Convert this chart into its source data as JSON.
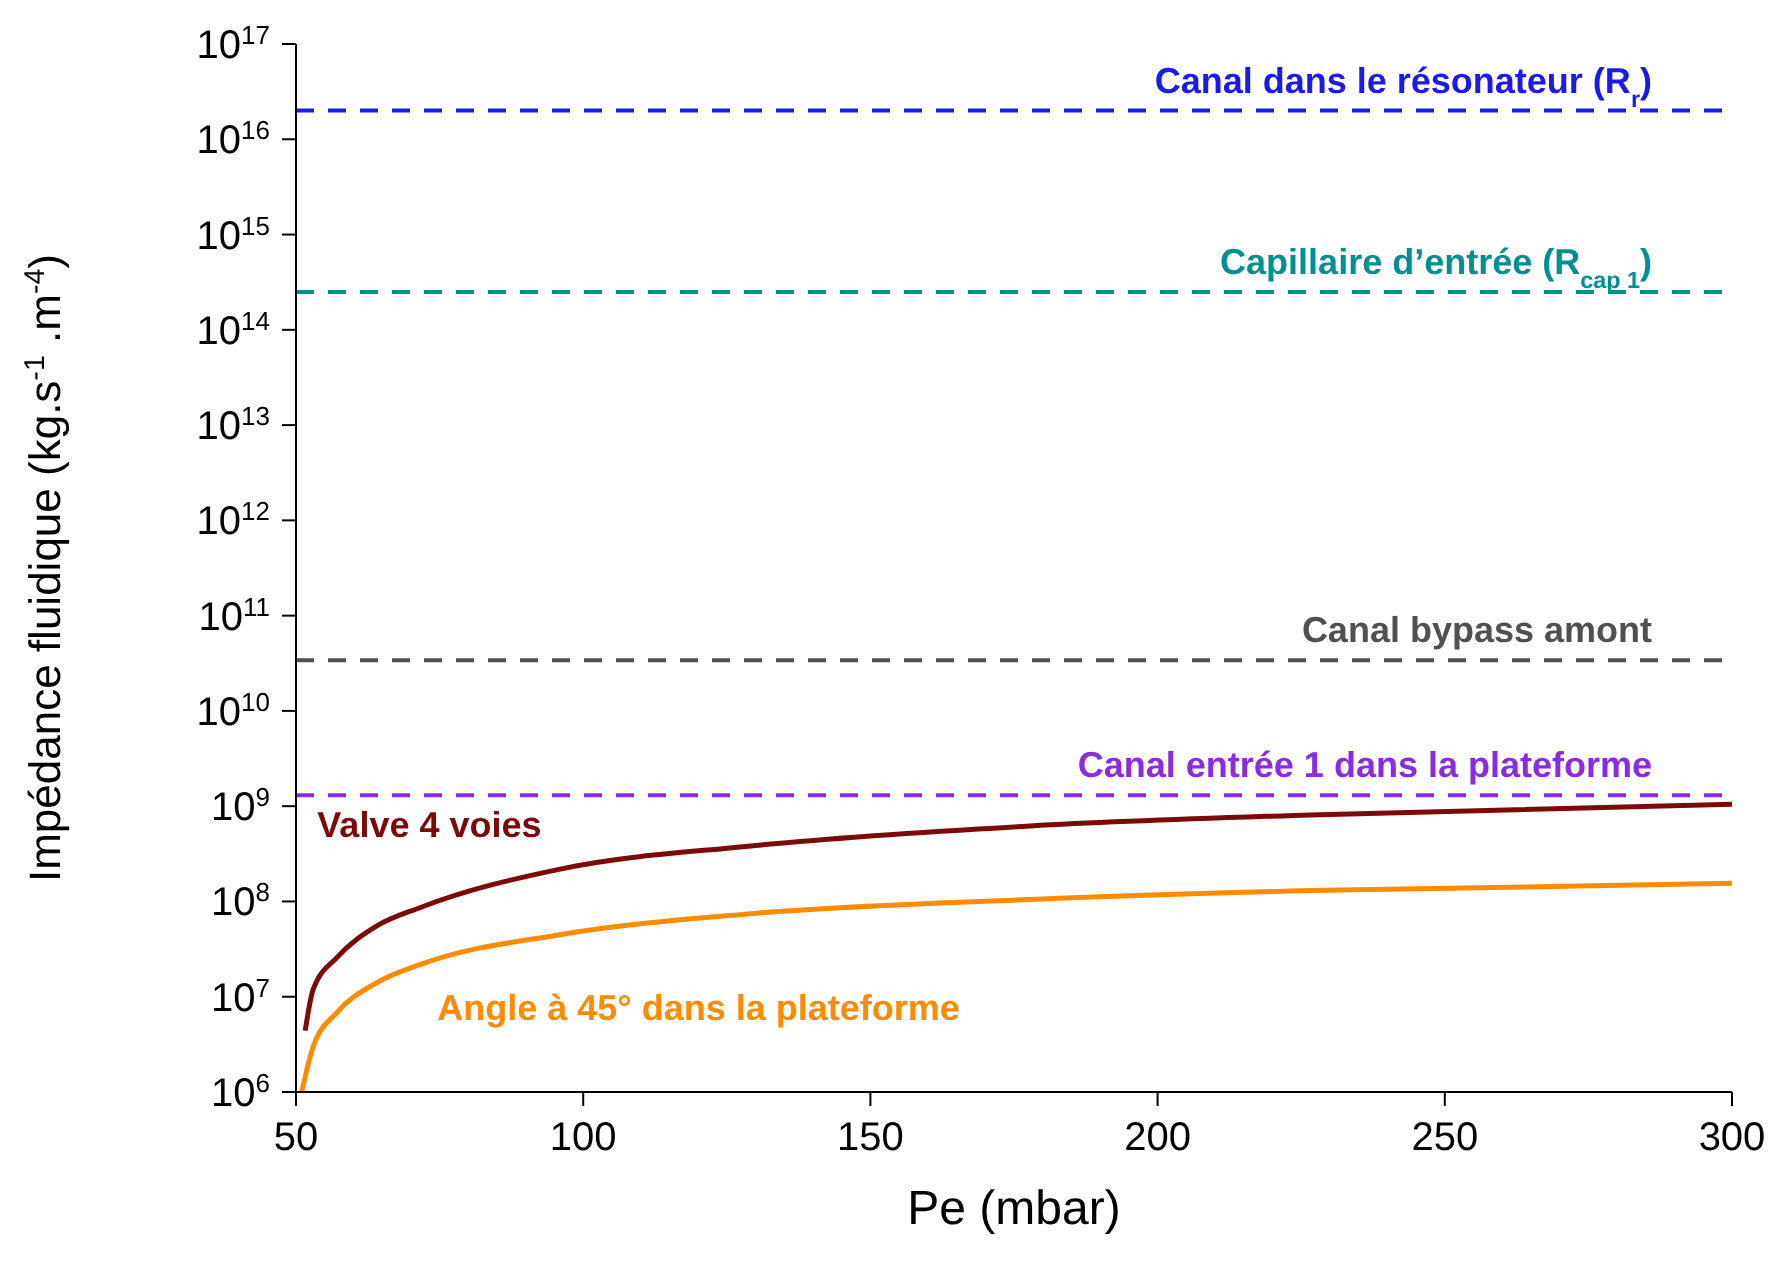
{
  "chart_data": {
    "type": "line",
    "xlabel": "Pe (mbar)",
    "ylabel": "Impédance fluidique (kg.s$^{-1}$ .m$^{-4}$)",
    "log": "y",
    "xlim": [
      50,
      300
    ],
    "xticks": [
      50,
      100,
      150,
      200,
      250,
      300
    ],
    "ylim": [
      1000000,
      100000000000000000
    ],
    "yticks": [
      {
        "value": 1000000,
        "label": "10$^{6}$"
      },
      {
        "value": 10000000,
        "label": "10$^{7}$"
      },
      {
        "value": 100000000,
        "label": "10$^{8}$"
      },
      {
        "value": 1000000000,
        "label": "10$^{9}$"
      },
      {
        "value": 10000000000,
        "label": "10$^{10}$"
      },
      {
        "value": 100000000000,
        "label": "10$^{11}$"
      },
      {
        "value": 1000000000000,
        "label": "10$^{12}$"
      },
      {
        "value": 10000000000000,
        "label": "10$^{13}$"
      },
      {
        "value": 100000000000000,
        "label": "10$^{14}$"
      },
      {
        "value": 1000000000000000,
        "label": "10$^{15}$"
      },
      {
        "value": 10000000000000000,
        "label": "10$^{16}$"
      },
      {
        "value": 100000000000000000,
        "label": "10$^{17}$"
      }
    ],
    "marker": "none",
    "line_style": "solid",
    "series": [
      {
        "name": "Valve 4 voies",
        "color": "#7b0a0a",
        "x": [
          51.6,
          53,
          57.2,
          64,
          71.8,
          96.2,
          128.7,
          177.8,
          226.6,
          300
        ],
        "values": [
          4400000,
          12000000,
          26000000,
          55000000,
          87000000,
          220000000,
          380000000,
          620000000,
          810000000,
          1050000000
        ]
      },
      {
        "name": "Angle à 45° dans la plateforme",
        "color": "#ff8c00",
        "x": [
          51,
          53,
          57.2,
          64,
          71.8,
          96.2,
          128.7,
          177.8,
          226.6,
          300
        ],
        "values": [
          1000000,
          3000000,
          6900000,
          14000000,
          22000000,
          45000000,
          74000000,
          105000000,
          130000000,
          155000000
        ]
      }
    ],
    "ref_lines": [
      {
        "axis": "y",
        "value": 20000000000000000,
        "label": "Canal dans le résonateur (R$_{r}$)",
        "color": "#1a1aee",
        "line_style": "dashed"
      },
      {
        "axis": "y",
        "value": 250000000000000,
        "label": "Capillaire d’entrée (R$_{cap 1}$)",
        "color": "#009090",
        "line_style": "dashed"
      },
      {
        "axis": "y",
        "value": 34000000000,
        "label": "Canal bypass amont",
        "color": "#505050",
        "line_style": "dashed"
      },
      {
        "axis": "y",
        "value": 1300000000,
        "label": "Canal entrée 1 dans la plateforme",
        "color": "#8a2be2",
        "line_style": "dashed"
      }
    ]
  }
}
